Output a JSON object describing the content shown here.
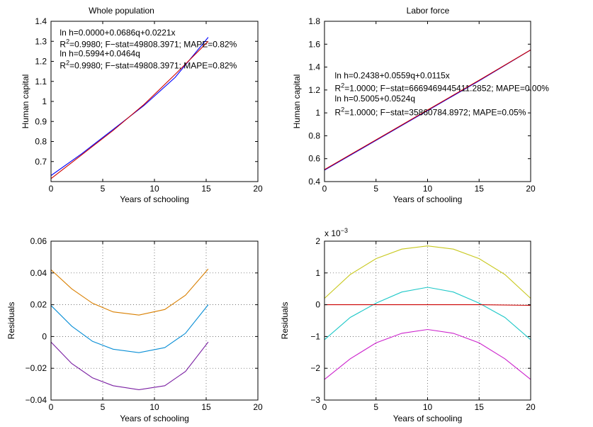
{
  "chart_data": [
    {
      "id": "p1",
      "type": "line",
      "title": "Whole population",
      "xlabel": "Years of schooling",
      "ylabel": "Human capital",
      "xlim": [
        0,
        20
      ],
      "ylim": [
        0.6,
        1.4
      ],
      "xticks": [
        "0",
        "5",
        "10",
        "15",
        "20"
      ],
      "xtick_values": [
        0,
        5,
        10,
        15,
        20
      ],
      "yticks": [
        "0.7",
        "0.8",
        "0.9",
        "1",
        "1.1",
        "1.2",
        "1.3",
        "1.4"
      ],
      "ytick_values": [
        0.7,
        0.8,
        0.9,
        1.0,
        1.1,
        1.2,
        1.3,
        1.4
      ],
      "grid": false,
      "series": [
        {
          "color": "#0000ff",
          "x": [
            0,
            3,
            6,
            9,
            12,
            15.2
          ],
          "y": [
            0.63,
            0.74,
            0.86,
            0.98,
            1.12,
            1.32
          ]
        },
        {
          "color": "#cc0000",
          "x": [
            0,
            3,
            6,
            9,
            12,
            15.2
          ],
          "y": [
            0.615,
            0.735,
            0.855,
            0.985,
            1.135,
            1.3
          ]
        }
      ],
      "annotations": [
        {
          "lines": [
            {
              "text": "ln h=0.0000+0.0686q+0.0221x"
            }
          ],
          "x": 0.85,
          "y": 1.33
        },
        {
          "lines": [
            {
              "text": "R",
              "sup": "2",
              "rest": "=0.9980; F−stat=49808.3971; MAPE=0.82%"
            }
          ],
          "x": 0.85,
          "y": 1.27
        },
        {
          "lines": [
            {
              "text": "ln h=0.5994+0.0464q"
            }
          ],
          "x": 0.85,
          "y": 1.225
        },
        {
          "lines": [
            {
              "text": "R",
              "sup": "2",
              "rest": "=0.9980; F−stat=49808.3971; MAPE=0.82%"
            }
          ],
          "x": 0.85,
          "y": 1.165
        }
      ]
    },
    {
      "id": "p2",
      "type": "line",
      "title": "Labor force",
      "xlabel": "Years of schooling",
      "ylabel": "Human capital",
      "xlim": [
        0,
        20
      ],
      "ylim": [
        0.4,
        1.8
      ],
      "xticks": [
        "0",
        "5",
        "10",
        "15",
        "20"
      ],
      "xtick_values": [
        0,
        5,
        10,
        15,
        20
      ],
      "yticks": [
        "0.4",
        "0.6",
        "0.8",
        "1",
        "1.2",
        "1.4",
        "1.6",
        "1.8"
      ],
      "ytick_values": [
        0.4,
        0.6,
        0.8,
        1.0,
        1.2,
        1.4,
        1.6,
        1.8
      ],
      "grid": false,
      "series": [
        {
          "color": "#0000ff",
          "x": [
            0,
            5,
            10,
            15,
            20
          ],
          "y": [
            0.5,
            0.76,
            1.02,
            1.28,
            1.55
          ]
        },
        {
          "color": "#cc0000",
          "x": [
            0,
            5,
            10,
            15,
            20
          ],
          "y": [
            0.505,
            0.765,
            1.025,
            1.285,
            1.55
          ]
        }
      ],
      "annotations": [
        {
          "lines": [
            {
              "text": "ln h=0.2438+0.0559q+0.0115x"
            }
          ],
          "x": 1.0,
          "y": 1.3
        },
        {
          "lines": [
            {
              "text": "R",
              "sup": "2",
              "rest": "=1.0000; F−stat=6669469445411.2852; MAPE=0.00%"
            }
          ],
          "x": 1.0,
          "y": 1.19
        },
        {
          "lines": [
            {
              "text": "ln h=0.5005+0.0524q"
            }
          ],
          "x": 1.0,
          "y": 1.1
        },
        {
          "lines": [
            {
              "text": "R",
              "sup": "2",
              "rest": "=1.0000; F−stat=35860784.8972; MAPE=0.05%"
            }
          ],
          "x": 1.0,
          "y": 0.98
        }
      ]
    },
    {
      "id": "p3",
      "type": "line",
      "title": "",
      "xlabel": "Years of schooling",
      "ylabel": "Residuals",
      "xlim": [
        0,
        20
      ],
      "ylim": [
        -0.04,
        0.06
      ],
      "xticks": [
        "0",
        "5",
        "10",
        "15",
        "20"
      ],
      "xtick_values": [
        0,
        5,
        10,
        15,
        20
      ],
      "yticks": [
        "−0.04",
        "−0.02",
        "0",
        "0.02",
        "0.04",
        "0.06"
      ],
      "ytick_values": [
        -0.04,
        -0.02,
        0,
        0.02,
        0.04,
        0.06
      ],
      "grid": true,
      "series": [
        {
          "color": "#d97f00",
          "x": [
            0,
            2,
            4,
            6,
            8.5,
            11,
            13,
            15.2
          ],
          "y": [
            0.042,
            0.03,
            0.021,
            0.0155,
            0.0135,
            0.017,
            0.026,
            0.0425
          ]
        },
        {
          "color": "#0a8fd6",
          "x": [
            0,
            2,
            4,
            6,
            8.5,
            11,
            13,
            15.2
          ],
          "y": [
            0.0195,
            0.0065,
            -0.003,
            -0.008,
            -0.0102,
            -0.007,
            0.002,
            0.02
          ]
        },
        {
          "color": "#7a1fa2",
          "x": [
            0,
            2,
            4,
            6,
            8.5,
            11,
            13,
            15.2
          ],
          "y": [
            -0.0035,
            -0.017,
            -0.026,
            -0.031,
            -0.0335,
            -0.031,
            -0.022,
            -0.0035
          ]
        }
      ],
      "annotations": []
    },
    {
      "id": "p4",
      "type": "line",
      "title": "",
      "xlabel": "Years of schooling",
      "ylabel": "Residuals",
      "xlim": [
        0,
        20
      ],
      "ylim": [
        -3,
        2
      ],
      "y_multiplier": "x 10",
      "y_multiplier_exp": "−3",
      "xticks": [
        "0",
        "5",
        "10",
        "15",
        "20"
      ],
      "xtick_values": [
        0,
        5,
        10,
        15,
        20
      ],
      "yticks": [
        "−3",
        "−2",
        "−1",
        "0",
        "1",
        "2"
      ],
      "ytick_values": [
        -3,
        -2,
        -1,
        0,
        1,
        2
      ],
      "grid": true,
      "series": [
        {
          "color": "#c8c81e",
          "x": [
            0,
            2.5,
            5,
            7.5,
            10,
            12.5,
            15,
            17.5,
            20
          ],
          "y": [
            0.2,
            0.95,
            1.45,
            1.75,
            1.85,
            1.75,
            1.45,
            0.95,
            0.2
          ]
        },
        {
          "color": "#1ec8c8",
          "x": [
            0,
            2.5,
            5,
            7.5,
            10,
            12.5,
            15,
            17.5,
            20
          ],
          "y": [
            -1.1,
            -0.4,
            0.05,
            0.4,
            0.55,
            0.4,
            0.05,
            -0.4,
            -1.1
          ]
        },
        {
          "color": "#cc0000",
          "x": [
            0,
            5,
            10,
            15,
            20
          ],
          "y": [
            0.0,
            0.0,
            0.0,
            0.0,
            -0.02
          ]
        },
        {
          "color": "#cc22cc",
          "x": [
            0,
            2.5,
            5,
            7.5,
            10,
            12.5,
            15,
            17.5,
            20
          ],
          "y": [
            -2.35,
            -1.7,
            -1.2,
            -0.9,
            -0.78,
            -0.9,
            -1.2,
            -1.7,
            -2.35
          ]
        }
      ],
      "annotations": []
    }
  ]
}
